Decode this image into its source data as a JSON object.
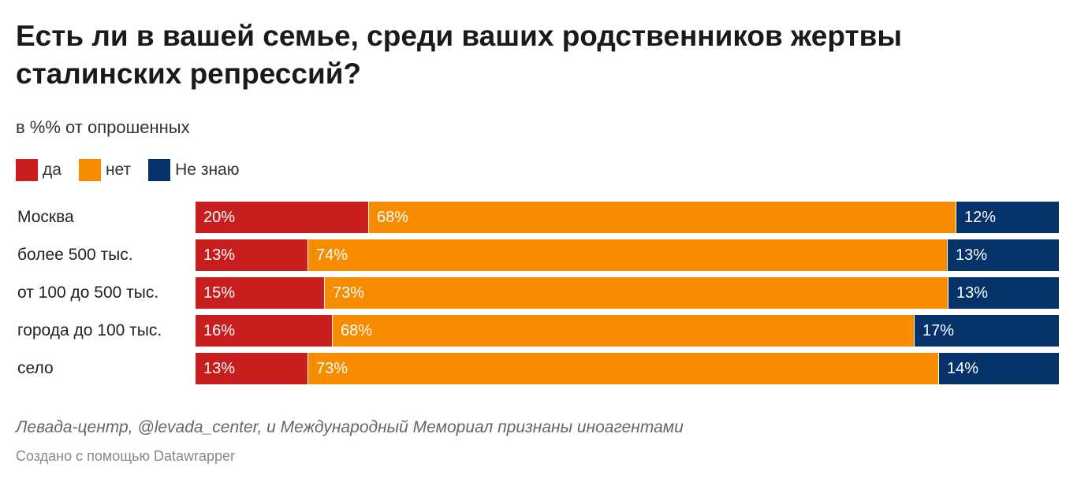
{
  "header": {
    "title": "Есть ли в вашей семье, среди ваших родственников жертвы сталинских репрессий?",
    "subtitle": "в %% от опрошенных"
  },
  "colors": {
    "yes": "#c81e1e",
    "no": "#f78c00",
    "dont_know": "#053268"
  },
  "chart_data": {
    "type": "bar",
    "orientation": "horizontal",
    "stacked": true,
    "title": "Есть ли в вашей семье, среди ваших родственников жертвы сталинских репрессий?",
    "subtitle": "в %% от опрошенных",
    "legend_position": "top-left",
    "categories": [
      "Москва",
      "более 500 тыс.",
      "от 100 до 500 тыс.",
      "города до 100 тыс.",
      "село"
    ],
    "series": [
      {
        "name": "да",
        "color": "#c81e1e",
        "values": [
          20,
          13,
          15,
          16,
          13
        ],
        "labels": [
          "20%",
          "13%",
          "15%",
          "16%",
          "13%"
        ]
      },
      {
        "name": "нет",
        "color": "#f78c00",
        "values": [
          68,
          74,
          73,
          68,
          73
        ],
        "labels": [
          "68%",
          "74%",
          "73%",
          "68%",
          "73%"
        ]
      },
      {
        "name": "Не знаю",
        "color": "#053268",
        "values": [
          12,
          13,
          13,
          17,
          14
        ],
        "labels": [
          "12%",
          "13%",
          "13%",
          "17%",
          "14%"
        ]
      }
    ]
  },
  "footer": {
    "note": "Левада-центр, @levada_center, и Международный Мемориал признаны иноагентами",
    "credit": "Создано с помощью Datawrapper"
  }
}
